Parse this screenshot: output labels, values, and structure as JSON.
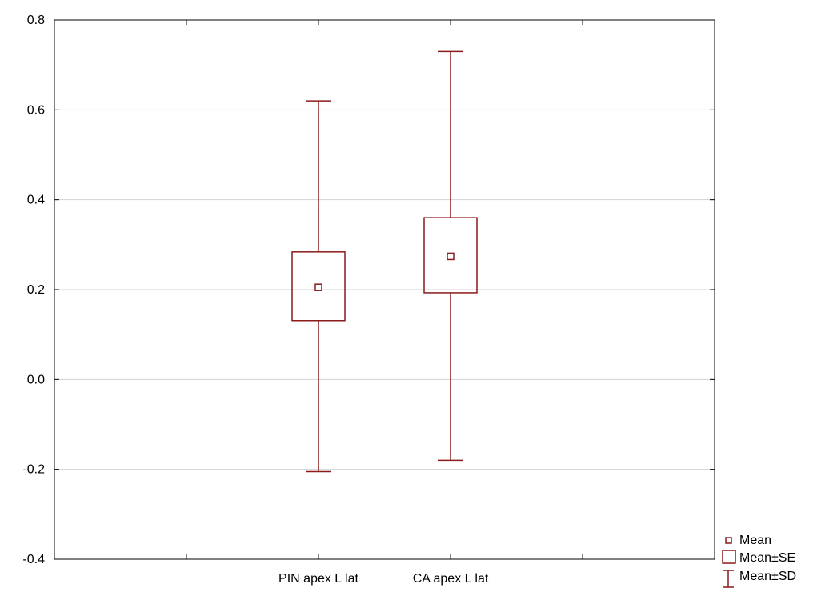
{
  "chart_data": {
    "type": "box",
    "categories": [
      "PIN apex L lat",
      "CA apex L lat"
    ],
    "series": [
      {
        "mean": 0.205,
        "se_low": 0.131,
        "se_high": 0.284,
        "sd_low": -0.205,
        "sd_high": 0.62
      },
      {
        "mean": 0.274,
        "se_low": 0.193,
        "se_high": 0.36,
        "sd_low": -0.18,
        "sd_high": 0.73
      }
    ],
    "title": "",
    "xlabel": "",
    "ylabel": "",
    "ylim": [
      -0.4,
      0.8
    ],
    "yticks": [
      "0.8",
      "0.6",
      "0.4",
      "0.2",
      "0.0",
      "-0.2",
      "-0.4"
    ],
    "grid": true,
    "legend": {
      "position": "bottom-right",
      "items": [
        "Mean",
        "Mean±SE",
        "Mean±SD"
      ]
    },
    "colors": {
      "series": "#8b1a1a",
      "grid": "#d3d3d3",
      "axis": "#000000"
    }
  }
}
